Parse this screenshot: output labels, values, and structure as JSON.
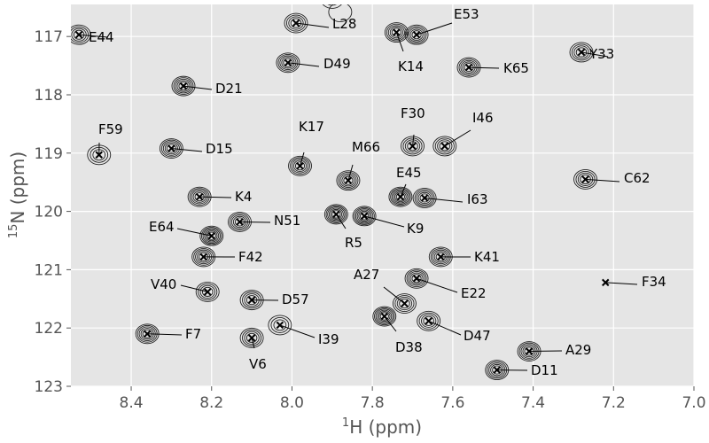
{
  "chart_data": {
    "type": "scatter",
    "subtype": "2D NMR HSQC contour spectrum",
    "xlabel": {
      "sup": "1",
      "main": "H (ppm)"
    },
    "ylabel": {
      "sup": "15",
      "main": "N (ppm)"
    },
    "xlim": [
      8.55,
      7.0
    ],
    "ylim": [
      123.0,
      116.45
    ],
    "x_reversed": true,
    "y_reversed": true,
    "grid": true,
    "x_ticks": [
      "8.4",
      "8.2",
      "8.0",
      "7.8",
      "7.6",
      "7.4",
      "7.2",
      "7.0"
    ],
    "y_ticks": [
      "117",
      "118",
      "119",
      "120",
      "121",
      "122",
      "123"
    ],
    "peaks": [
      {
        "label": "E44",
        "x": 8.53,
        "y": 116.97,
        "intensity": 4
      },
      {
        "label": "L28",
        "x": 7.99,
        "y": 116.77,
        "intensity": 4
      },
      {
        "label": "E53",
        "x": 7.69,
        "y": 116.97,
        "intensity": 5
      },
      {
        "label": "K14",
        "x": 7.74,
        "y": 116.93,
        "intensity": 5
      },
      {
        "label": "Y33",
        "x": 7.28,
        "y": 117.27,
        "intensity": 4
      },
      {
        "label": "D49",
        "x": 8.01,
        "y": 117.45,
        "intensity": 5
      },
      {
        "label": "K65",
        "x": 7.56,
        "y": 117.53,
        "intensity": 5
      },
      {
        "label": "D21",
        "x": 8.27,
        "y": 117.85,
        "intensity": 5
      },
      {
        "label": "F30",
        "x": 7.7,
        "y": 118.88,
        "intensity": 4
      },
      {
        "label": "I46",
        "x": 7.62,
        "y": 118.88,
        "intensity": 4
      },
      {
        "label": "F59",
        "x": 8.48,
        "y": 119.03,
        "intensity": 3
      },
      {
        "label": "D15",
        "x": 8.3,
        "y": 118.92,
        "intensity": 5
      },
      {
        "label": "K17",
        "x": 7.98,
        "y": 119.22,
        "intensity": 5
      },
      {
        "label": "M66",
        "x": 7.86,
        "y": 119.47,
        "intensity": 5
      },
      {
        "label": "C62",
        "x": 7.27,
        "y": 119.45,
        "intensity": 4
      },
      {
        "label": "E45",
        "x": 7.73,
        "y": 119.75,
        "intensity": 6
      },
      {
        "label": "I63",
        "x": 7.67,
        "y": 119.77,
        "intensity": 5
      },
      {
        "label": "K4",
        "x": 8.23,
        "y": 119.75,
        "intensity": 5
      },
      {
        "label": "N51",
        "x": 8.13,
        "y": 120.18,
        "intensity": 5
      },
      {
        "label": "R5",
        "x": 7.89,
        "y": 120.05,
        "intensity": 6
      },
      {
        "label": "K9",
        "x": 7.82,
        "y": 120.08,
        "intensity": 6
      },
      {
        "label": "E64",
        "x": 8.2,
        "y": 120.42,
        "intensity": 6
      },
      {
        "label": "F42",
        "x": 8.22,
        "y": 120.78,
        "intensity": 5
      },
      {
        "label": "K41",
        "x": 7.63,
        "y": 120.78,
        "intensity": 5
      },
      {
        "label": "F34",
        "x": 7.22,
        "y": 121.22,
        "intensity": 0
      },
      {
        "label": "V40",
        "x": 8.21,
        "y": 121.38,
        "intensity": 4
      },
      {
        "label": "D57",
        "x": 8.1,
        "y": 121.52,
        "intensity": 4
      },
      {
        "label": "A27",
        "x": 7.72,
        "y": 121.58,
        "intensity": 4
      },
      {
        "label": "E22",
        "x": 7.69,
        "y": 121.15,
        "intensity": 5
      },
      {
        "label": "D38",
        "x": 7.77,
        "y": 121.8,
        "intensity": 6
      },
      {
        "label": "D47",
        "x": 7.66,
        "y": 121.88,
        "intensity": 4
      },
      {
        "label": "I39",
        "x": 8.03,
        "y": 121.95,
        "intensity": 3
      },
      {
        "label": "V6",
        "x": 8.1,
        "y": 122.17,
        "intensity": 4
      },
      {
        "label": "F7",
        "x": 8.36,
        "y": 122.1,
        "intensity": 5
      },
      {
        "label": "A29",
        "x": 7.41,
        "y": 122.4,
        "intensity": 5
      },
      {
        "label": "D11",
        "x": 7.49,
        "y": 122.72,
        "intensity": 5
      }
    ],
    "extra_peaks": [
      {
        "x": 7.9,
        "y": 116.35,
        "intensity": 2
      },
      {
        "x": 7.88,
        "y": 116.58,
        "intensity": 1
      }
    ]
  }
}
